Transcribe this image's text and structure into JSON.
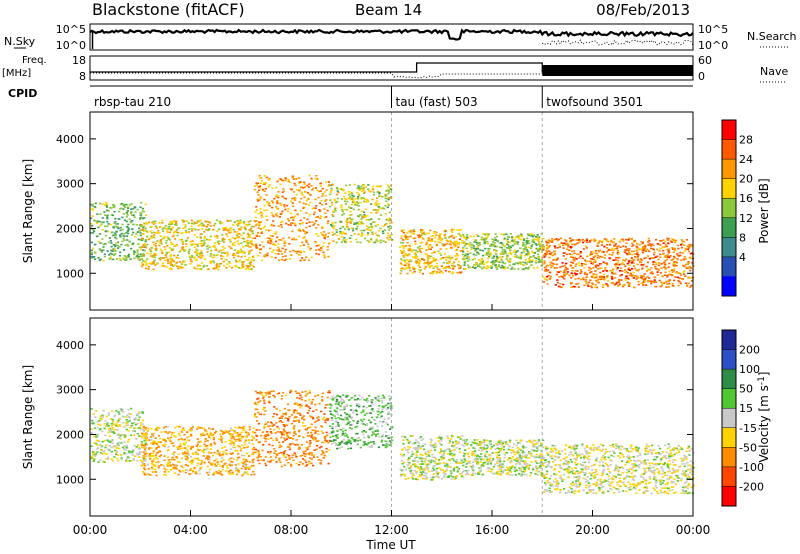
{
  "header": {
    "station": "Blackstone (fitACF)",
    "beam": "Beam 14",
    "date": "08/Feb/2013"
  },
  "top_panels": {
    "nsky_label": "N.Sky",
    "nsky_ticks": [
      "10^5",
      "10^0"
    ],
    "nsearch_label": "N.Search",
    "nsearch_ticks": [
      "10^5",
      "10^0"
    ],
    "freq_label_line1": "Freq.",
    "freq_label_line2": "[MHz]",
    "freq_ticks": [
      "18",
      "8"
    ],
    "nave_label": "Nave",
    "nave_ticks": [
      "60",
      "0"
    ],
    "cpid_label": "CPID",
    "cpid_segments": [
      {
        "label": "rbsp-tau 210",
        "start_hour": 0
      },
      {
        "label": "tau (fast) 503",
        "start_hour": 12
      },
      {
        "label": "twofsound 3501",
        "start_hour": 18
      }
    ]
  },
  "time_axis": {
    "label": "Time UT",
    "ticks": [
      "00:00",
      "04:00",
      "08:00",
      "12:00",
      "16:00",
      "20:00",
      "00:00"
    ],
    "tick_hours": [
      0,
      4,
      8,
      12,
      16,
      20,
      24
    ]
  },
  "power_colorbar": {
    "label": "Power [dB]",
    "ticks": [
      "28",
      "24",
      "20",
      "16",
      "12",
      "8",
      "4"
    ],
    "colors": [
      "#ff0000",
      "#ff5a00",
      "#ff9600",
      "#ffd200",
      "#8cc83c",
      "#3ca050",
      "#3c8c8c",
      "#2850b4",
      "#0000ff"
    ]
  },
  "velocity_colorbar": {
    "label": "Velocity [m s",
    "label_superscript": "-1",
    "label_close": "]",
    "ticks": [
      "200",
      "100",
      "50",
      "15",
      "-15",
      "-50",
      "-100",
      "-200"
    ],
    "colors": [
      "#1e2896",
      "#2d50c8",
      "#2d8c46",
      "#50c832",
      "#c8c8c8",
      "#ffd200",
      "#ff8c00",
      "#ff4600",
      "#ff0000"
    ]
  },
  "chart_data": [
    {
      "type": "heatmap",
      "title": "Power",
      "xlabel": "",
      "ylabel": "Slant Range [km]",
      "xlim": [
        0,
        24
      ],
      "ylim": [
        180,
        4600
      ],
      "yticks": [
        1000,
        2000,
        3000,
        4000
      ],
      "scatter_regions": [
        {
          "x": [
            0.0,
            2.2
          ],
          "y": [
            1300,
            2600
          ],
          "value": 14
        },
        {
          "x": [
            2.0,
            6.5
          ],
          "y": [
            1100,
            2200
          ],
          "value": 20
        },
        {
          "x": [
            6.5,
            9.5
          ],
          "y": [
            1300,
            3200
          ],
          "value": 24
        },
        {
          "x": [
            9.5,
            12.0
          ],
          "y": [
            1700,
            3000
          ],
          "value": 18
        },
        {
          "x": [
            12.3,
            14.8
          ],
          "y": [
            1000,
            2000
          ],
          "value": 22
        },
        {
          "x": [
            14.8,
            18.0
          ],
          "y": [
            1100,
            1900
          ],
          "value": 16
        },
        {
          "x": [
            18.0,
            24.0
          ],
          "y": [
            700,
            1800
          ],
          "value": 26
        }
      ]
    },
    {
      "type": "heatmap",
      "title": "Velocity",
      "xlabel": "Time UT",
      "ylabel": "Slant Range [km]",
      "xlim": [
        0,
        24
      ],
      "ylim": [
        180,
        4600
      ],
      "yticks": [
        1000,
        2000,
        3000,
        4000
      ],
      "scatter_regions": [
        {
          "x": [
            0.0,
            2.2
          ],
          "y": [
            1400,
            2600
          ],
          "value": 0
        },
        {
          "x": [
            2.0,
            6.5
          ],
          "y": [
            1100,
            2200
          ],
          "value": -50
        },
        {
          "x": [
            6.5,
            9.5
          ],
          "y": [
            1300,
            3000
          ],
          "value": -80
        },
        {
          "x": [
            9.5,
            12.0
          ],
          "y": [
            1700,
            2900
          ],
          "value": 30
        },
        {
          "x": [
            12.3,
            14.8
          ],
          "y": [
            1000,
            2000
          ],
          "value": 0
        },
        {
          "x": [
            14.8,
            18.0
          ],
          "y": [
            1100,
            1900
          ],
          "value": 0
        },
        {
          "x": [
            18.0,
            24.0
          ],
          "y": [
            700,
            1800
          ],
          "value": -10
        }
      ]
    }
  ]
}
